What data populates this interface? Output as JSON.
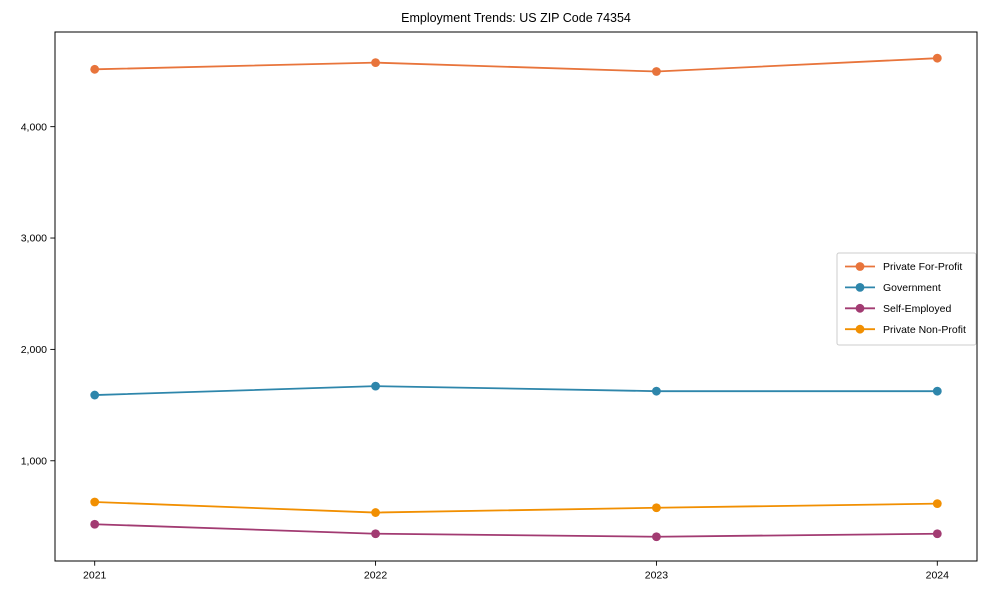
{
  "chart_data": {
    "type": "line",
    "title": "Employment Trends: US ZIP Code 74354",
    "xlabel": "",
    "ylabel": "",
    "x": [
      2021,
      2022,
      2023,
      2024
    ],
    "xtick_labels": [
      "2021",
      "2022",
      "2023",
      "2024"
    ],
    "yticks": [
      1000,
      2000,
      3000,
      4000
    ],
    "ytick_labels": [
      "1,000",
      "2,000",
      "3,000",
      "4,000"
    ],
    "ylim": [
      100,
      4850
    ],
    "grid": false,
    "frame": true,
    "marker": "circle",
    "legend_position": "center right",
    "series": [
      {
        "name": "Private For-Profit",
        "color": "#E8743B",
        "values": [
          4515,
          4575,
          4495,
          4615
        ]
      },
      {
        "name": "Government",
        "color": "#2E86AB",
        "values": [
          1590,
          1670,
          1625,
          1625
        ]
      },
      {
        "name": "Self-Employed",
        "color": "#A23B72",
        "values": [
          430,
          345,
          318,
          345
        ]
      },
      {
        "name": "Private Non-Profit",
        "color": "#F18F01",
        "values": [
          630,
          535,
          578,
          615
        ]
      }
    ],
    "axis_color": "#000000",
    "background_color": "#ffffff",
    "legend_border_color": "#cccccc"
  }
}
